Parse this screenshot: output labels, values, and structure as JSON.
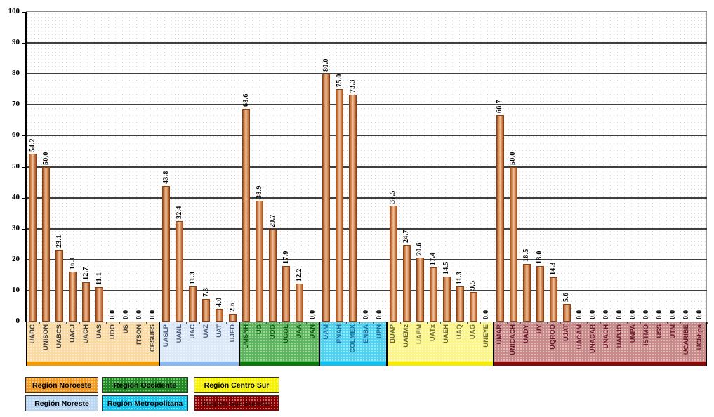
{
  "chart_data": {
    "type": "bar",
    "title": "",
    "xlabel": "",
    "ylabel": "",
    "ylim": [
      0,
      100
    ],
    "yticks": [
      0,
      10,
      20,
      30,
      40,
      50,
      60,
      70,
      80,
      90,
      100
    ],
    "grid": true,
    "legend_position": "bottom-left",
    "categories": [
      "UABC",
      "UNISON",
      "UABCS",
      "UACJ",
      "UACH",
      "UAS",
      "UDO",
      "US",
      "ITSON",
      "CESUES",
      "UASLP",
      "UANL",
      "UAC",
      "UAZ",
      "UAT",
      "UJED",
      "UMSNH",
      "UG",
      "UDG",
      "UCOL",
      "UAA",
      "UAN",
      "UAM",
      "ENAH",
      "COLMEX",
      "ENBA",
      "UPN",
      "BUAP",
      "UAEMz",
      "UAEM",
      "UATx",
      "UAEH",
      "UAQ",
      "UAG",
      "UNEYE",
      "UMAR",
      "UNICACH",
      "UADY",
      "UY",
      "UQROO",
      "UJAT",
      "UACAM",
      "UNACAR",
      "UNACH",
      "UABJO",
      "UNPA",
      "ISTMO",
      "USS",
      "UTM",
      "UCARIBE",
      "UChtlpa"
    ],
    "values": [
      54.2,
      50.0,
      23.1,
      16.1,
      12.7,
      11.1,
      0.0,
      0.0,
      0.0,
      0.0,
      43.8,
      32.4,
      11.3,
      7.3,
      4.0,
      2.6,
      68.6,
      38.9,
      29.7,
      17.9,
      12.2,
      0.0,
      80.0,
      75.0,
      73.3,
      0.0,
      0.0,
      37.5,
      24.7,
      20.6,
      17.4,
      14.5,
      11.3,
      9.5,
      0.0,
      66.7,
      50.0,
      18.5,
      18.0,
      14.3,
      5.6,
      0.0,
      0.0,
      0.0,
      0.0,
      0.0,
      0.0,
      0.0,
      0.0,
      0.0,
      0.0
    ],
    "value_labels": [
      "54.2",
      "50.0",
      "23.1",
      "16.1",
      "12.7",
      "11.1",
      "0.0",
      "0.0",
      "0.0",
      "0.0",
      "43.8",
      "32.4",
      "11.3",
      "7.3",
      "4.0",
      "2.6",
      "68.6",
      "38.9",
      "29.7",
      "17.9",
      "12.2",
      "0.0",
      "80.0",
      "75.0",
      "73.3",
      "0.0",
      "0.0",
      "37.5",
      "24.7",
      "20.6",
      "17.4",
      "14.5",
      "11.3",
      "9.5",
      "0.0",
      "66.7",
      "50.0",
      "18.5",
      "18.0",
      "14.3",
      "5.6",
      "0.0",
      "0.0",
      "0.0",
      "0.0",
      "0.0",
      "0.0",
      "0.0",
      "0.0",
      "0.0",
      "0.0"
    ],
    "regions": [
      {
        "name": "Región Noroeste",
        "start": 0,
        "count": 10,
        "fill": "#fbd9a3",
        "strip": "#f59b00",
        "text": "#404040"
      },
      {
        "name": "Región Noreste",
        "start": 10,
        "count": 6,
        "fill": "#dbe8f7",
        "strip": "#8ab8f0",
        "text": "#4a5a7a"
      },
      {
        "name": "Región Occidente",
        "start": 16,
        "count": 6,
        "fill": "#5db55d",
        "strip": "#0a7a0a",
        "text": "#0d5a0d"
      },
      {
        "name": "Región Metropolitana",
        "start": 22,
        "count": 5,
        "fill": "#4fd2f0",
        "strip": "#10c0f0",
        "text": "#1a6fa0"
      },
      {
        "name": "Región Centro Sur",
        "start": 27,
        "count": 8,
        "fill": "#fcf58a",
        "strip": "#f6ec00",
        "text": "#6a6a30"
      },
      {
        "name": "Región Sur Sureste",
        "start": 35,
        "count": 16,
        "fill": "#c98a8a",
        "strip": "#8a0a0a",
        "text": "#6a1a2a"
      }
    ],
    "bar_color": "#c8763f"
  },
  "legend": [
    {
      "label": "Región Noroeste",
      "bg": "#f59a20",
      "fg": "#000000"
    },
    {
      "label": "Región Occidente",
      "bg": "#1f8a1f",
      "fg": "#000000"
    },
    {
      "label": "Región Centro Sur",
      "bg": "#f8f400",
      "fg": "#000000"
    },
    {
      "label": "Región Noreste",
      "bg": "#b8d6f4",
      "fg": "#000000"
    },
    {
      "label": "Región Metropolitana",
      "bg": "#10c4f0",
      "fg": "#000000"
    },
    {
      "label": "Región Sur Sureste",
      "bg": "#8a0000",
      "fg": "#3a0000"
    }
  ]
}
